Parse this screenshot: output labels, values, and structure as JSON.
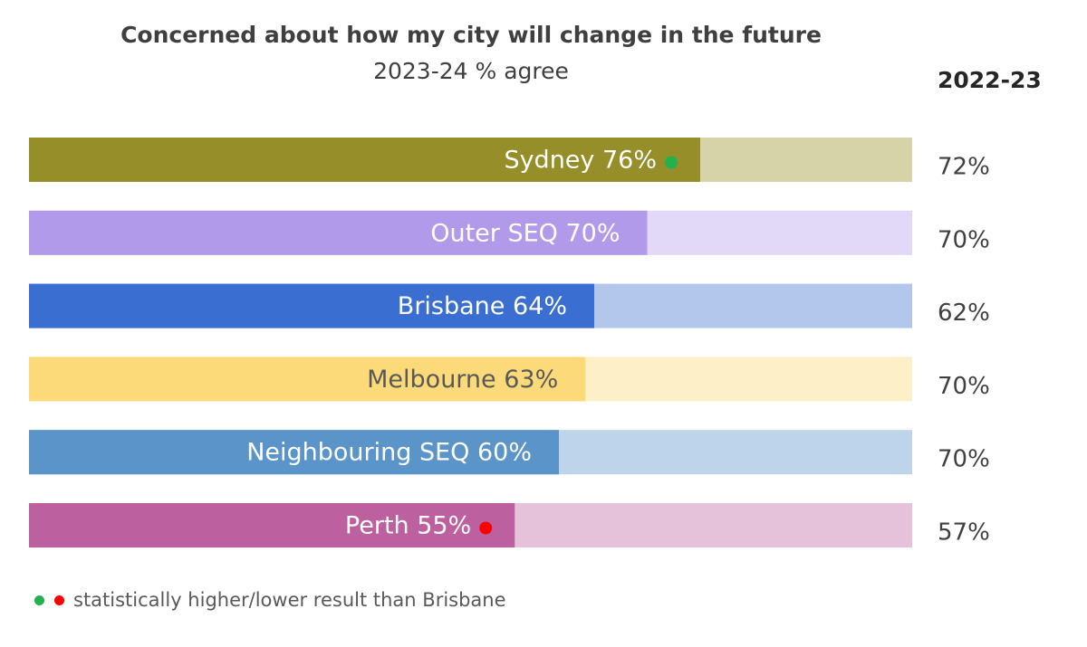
{
  "chart_data": {
    "type": "bar",
    "orientation": "horizontal",
    "title": "Concerned about how my city will change in the future",
    "subtitle": "2023-24 % agree",
    "comparison_header": "2022-23",
    "xlim": [
      0,
      100
    ],
    "unit": "%",
    "categories": [
      "Sydney",
      "Outer SEQ",
      "Brisbane",
      "Melbourne",
      "Neighbouring SEQ",
      "Perth"
    ],
    "series": [
      {
        "name": "2023-24",
        "values": [
          76,
          70,
          64,
          63,
          60,
          55
        ],
        "labels": [
          "Sydney 76%",
          "Outer SEQ 70%",
          "Brisbane 64%",
          "Melbourne 63%",
          "Neighbouring SEQ 60%",
          "Perth 55%"
        ]
      },
      {
        "name": "2022-23",
        "values": [
          72,
          70,
          62,
          70,
          70,
          57
        ],
        "labels": [
          "72%",
          "70%",
          "62%",
          "70%",
          "70%",
          "57%"
        ]
      }
    ],
    "colors": {
      "fill": [
        "#968f29",
        "#b19aea",
        "#3a6fd1",
        "#fcda79",
        "#5a94c9",
        "#bd609f"
      ],
      "background": [
        "#d6d3a8",
        "#e2d8f7",
        "#b3c7ec",
        "#fdefc7",
        "#bed4ea",
        "#e6c1da"
      ],
      "label": [
        "#ffffff",
        "#ffffff",
        "#ffffff",
        "#595959",
        "#ffffff",
        "#ffffff"
      ]
    },
    "significance": [
      {
        "category": "Sydney",
        "direction": "higher",
        "color": "#22b14c"
      },
      {
        "category": "Perth",
        "direction": "lower",
        "color": "#ff0000"
      }
    ],
    "legend": {
      "text": "statistically higher/lower result than Brisbane",
      "dot_colors": [
        "#22b14c",
        "#ff0000"
      ],
      "placement": "bottom-left"
    },
    "grid": false
  }
}
